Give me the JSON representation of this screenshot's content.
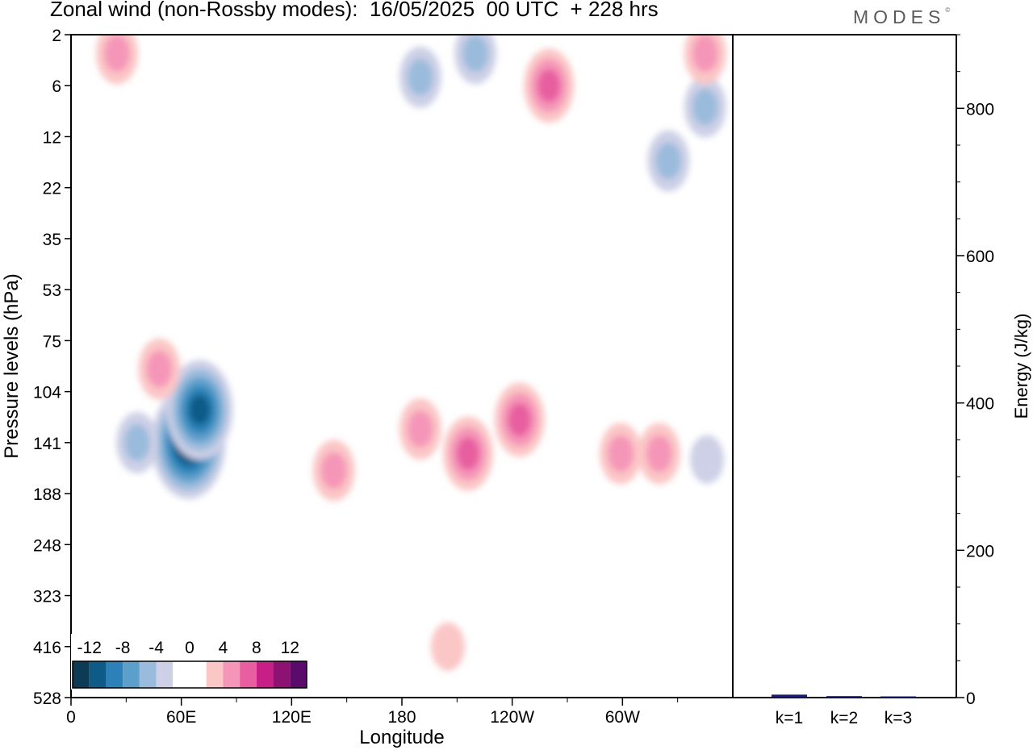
{
  "title": "Zonal wind (non-Rossby modes):  16/05/2025  00 UTC  + 228 hrs",
  "logo": "MODES",
  "logo_mark": "©",
  "chart_data": [
    {
      "type": "heatmap",
      "title": "Zonal wind (non-Rossby modes):  16/05/2025  00 UTC  + 228 hrs",
      "xlabel": "Longitude",
      "ylabel": "Pressure levels (hPa)",
      "x_ticks": [
        "0",
        "60E",
        "120E",
        "180",
        "120W",
        "60W"
      ],
      "x_tick_degrees": [
        0,
        60,
        120,
        180,
        240,
        300
      ],
      "xlim": [
        0,
        360
      ],
      "y_ticks": [
        "2",
        "6",
        "12",
        "22",
        "35",
        "53",
        "75",
        "104",
        "141",
        "188",
        "248",
        "323",
        "416",
        "528"
      ],
      "y_scale": "categorical-levels",
      "colorbar": {
        "tick_labels": [
          "-12",
          "-8",
          "-4",
          "0",
          "4",
          "8",
          "12"
        ],
        "levels": [
          -14,
          -12,
          -10,
          -8,
          -6,
          -4,
          -2,
          0,
          2,
          4,
          6,
          8,
          10,
          12,
          14
        ],
        "colors": [
          "#0d3a55",
          "#0f5b88",
          "#2c82b8",
          "#5d9fcb",
          "#9bbbdc",
          "#cdd0e6",
          "#ffffff",
          "#ffffff",
          "#fbc6c6",
          "#f596b8",
          "#e85ea0",
          "#c81f86",
          "#8e1271",
          "#5a0b6b"
        ],
        "placement": "bottom-left"
      },
      "features": [
        {
          "lon": 64,
          "level": "141",
          "value": -13,
          "sign": "negative"
        },
        {
          "lon": 70,
          "level": "116",
          "value": -10,
          "sign": "negative"
        },
        {
          "lon": 36,
          "level": "141",
          "value": -4,
          "sign": "negative"
        },
        {
          "lon": 244,
          "level": "123",
          "value": 7,
          "sign": "positive"
        },
        {
          "lon": 216,
          "level": "150",
          "value": 7,
          "sign": "positive"
        },
        {
          "lon": 190,
          "level": "130",
          "value": 4,
          "sign": "positive"
        },
        {
          "lon": 143,
          "level": "165",
          "value": 4,
          "sign": "positive"
        },
        {
          "lon": 299,
          "level": "150",
          "value": 4,
          "sign": "positive"
        },
        {
          "lon": 320,
          "level": "150",
          "value": 5,
          "sign": "positive"
        },
        {
          "lon": 48,
          "level": "90",
          "value": 4,
          "sign": "positive"
        },
        {
          "lon": 346,
          "level": "155",
          "value": -3,
          "sign": "negative"
        },
        {
          "lon": 260,
          "level": "6",
          "value": 7,
          "sign": "positive"
        },
        {
          "lon": 220,
          "level": "3",
          "value": -5,
          "sign": "negative"
        },
        {
          "lon": 190,
          "level": "5",
          "value": -4,
          "sign": "negative"
        },
        {
          "lon": 325,
          "level": "16",
          "value": -5,
          "sign": "negative"
        },
        {
          "lon": 345,
          "level": "8",
          "value": -4,
          "sign": "negative"
        },
        {
          "lon": 25,
          "level": "3",
          "value": 5,
          "sign": "positive"
        },
        {
          "lon": 345,
          "level": "3",
          "value": 5,
          "sign": "positive"
        },
        {
          "lon": 205,
          "level": "416",
          "value": 3,
          "sign": "positive"
        }
      ]
    },
    {
      "type": "bar",
      "categories": [
        "k=1",
        "k=2",
        "k=3"
      ],
      "values": [
        4,
        2,
        1
      ],
      "ylabel": "Energy (J/kg)",
      "ylim": [
        0,
        900
      ],
      "y_ticks": [
        0,
        200,
        400,
        600,
        800
      ],
      "bar_color": "#1c1c6e"
    }
  ]
}
